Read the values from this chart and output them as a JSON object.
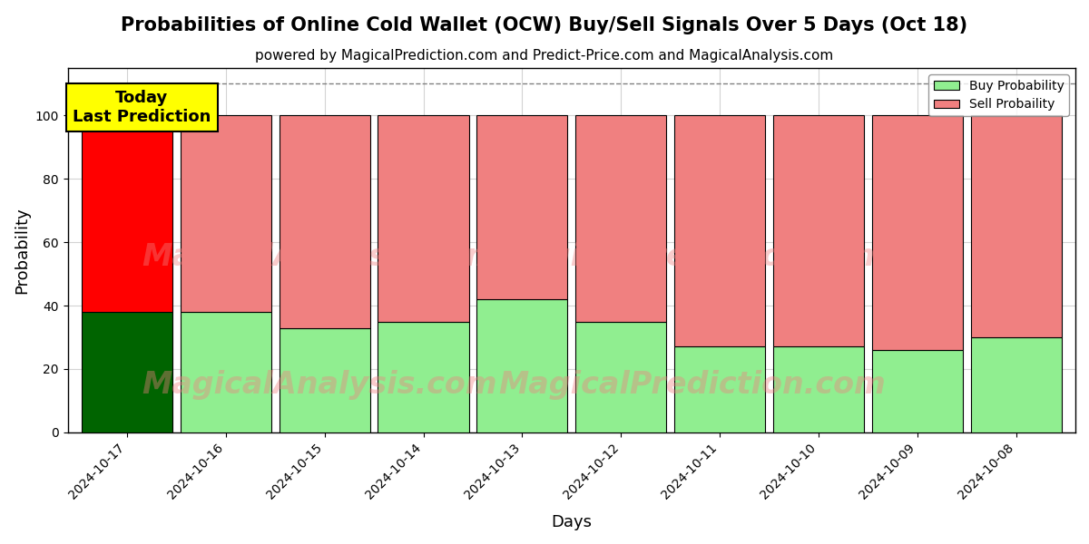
{
  "title": "Probabilities of Online Cold Wallet (OCW) Buy/Sell Signals Over 5 Days (Oct 18)",
  "subtitle": "powered by MagicalPrediction.com and Predict-Price.com and MagicalAnalysis.com",
  "xlabel": "Days",
  "ylabel": "Probability",
  "categories": [
    "2024-10-17",
    "2024-10-16",
    "2024-10-15",
    "2024-10-14",
    "2024-10-13",
    "2024-10-12",
    "2024-10-11",
    "2024-10-10",
    "2024-10-09",
    "2024-10-08"
  ],
  "buy_values": [
    38,
    38,
    33,
    35,
    42,
    35,
    27,
    27,
    26,
    30
  ],
  "sell_values": [
    62,
    62,
    67,
    65,
    58,
    65,
    73,
    73,
    74,
    70
  ],
  "buy_colors": [
    "#006400",
    "#90EE90",
    "#90EE90",
    "#90EE90",
    "#90EE90",
    "#90EE90",
    "#90EE90",
    "#90EE90",
    "#90EE90",
    "#90EE90"
  ],
  "sell_colors": [
    "#FF0000",
    "#F08080",
    "#F08080",
    "#F08080",
    "#F08080",
    "#F08080",
    "#F08080",
    "#F08080",
    "#F08080",
    "#F08080"
  ],
  "today_label": "Today\nLast Prediction",
  "legend_buy": "Buy Probability",
  "legend_sell": "Sell Probaility",
  "ylim": [
    0,
    115
  ],
  "dashed_line_y": 110,
  "watermark1": "MagicalAnalysis.com",
  "watermark2": "MagicalPrediction.com",
  "watermark3": "MagicalAnalysis.com",
  "watermark4": "MagicalPrediction.com",
  "background_color": "#ffffff",
  "title_fontsize": 15,
  "subtitle_fontsize": 11
}
